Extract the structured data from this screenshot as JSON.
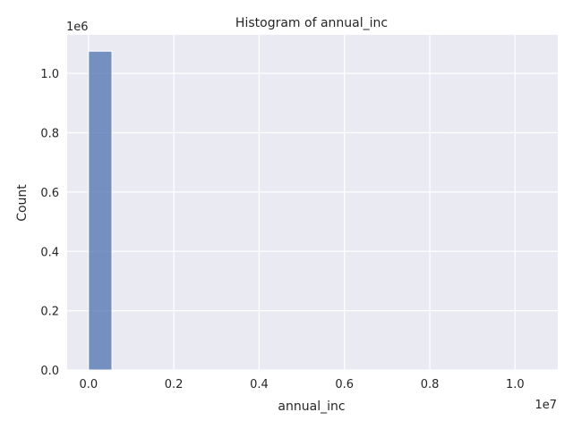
{
  "chart_data": {
    "type": "bar",
    "title": "Histogram of annual_inc",
    "xlabel": "annual_inc",
    "ylabel": "Count",
    "x_offset_label": "1e7",
    "y_offset_label": "1e6",
    "xlim": [
      -0.05,
      1.1
    ],
    "ylim": [
      0,
      1.13
    ],
    "xticks": [
      0.0,
      0.2,
      0.4,
      0.6,
      0.8,
      1.0
    ],
    "xtick_labels": [
      "0.0",
      "0.2",
      "0.4",
      "0.6",
      "0.8",
      "1.0"
    ],
    "yticks": [
      0.0,
      0.2,
      0.4,
      0.6,
      0.8,
      1.0
    ],
    "ytick_labels": [
      "0.0",
      "0.2",
      "0.4",
      "0.6",
      "0.8",
      "1.0"
    ],
    "bin_edges": [
      0.0,
      0.055
    ],
    "values": [
      1.075
    ],
    "bar_color": "#4c72b0",
    "background_color": "#eaeaf2",
    "grid": true
  }
}
